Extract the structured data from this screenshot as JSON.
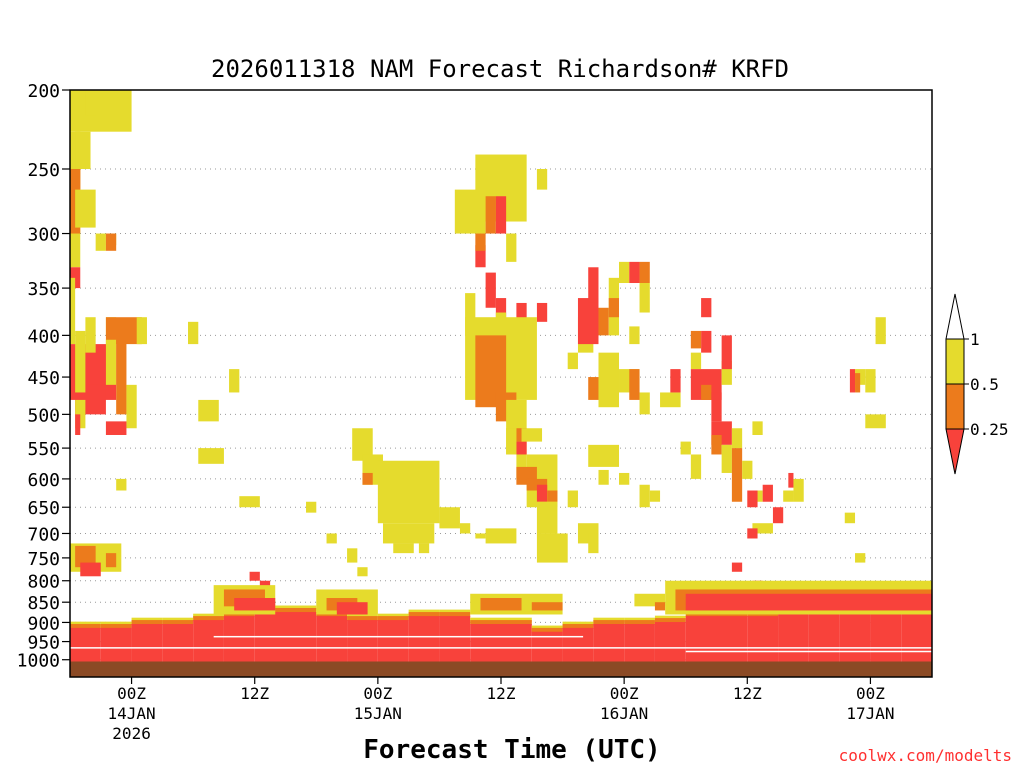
{
  "chart_data": {
    "type": "heatmap",
    "title": "2026011318 NAM Forecast Richardson# KRFD",
    "xlabel": "Forecast Time (UTC)",
    "source": "coolwx.com/modelts",
    "y_scale": "log",
    "y_reversed": true,
    "ylim": [
      200,
      1050
    ],
    "ylabel": "",
    "y_ticks": [
      200,
      250,
      300,
      350,
      400,
      450,
      500,
      550,
      600,
      650,
      700,
      750,
      800,
      850,
      900,
      950,
      1000
    ],
    "x_start": "2026-01-13 18Z",
    "x_step_hours": 1,
    "x_ticks": [
      {
        "hour": 6,
        "label": "00Z",
        "date": "14JAN",
        "year": "2026"
      },
      {
        "hour": 18,
        "label": "12Z",
        "date": "",
        "year": ""
      },
      {
        "hour": 30,
        "label": "00Z",
        "date": "15JAN",
        "year": ""
      },
      {
        "hour": 42,
        "label": "12Z",
        "date": "",
        "year": ""
      },
      {
        "hour": 54,
        "label": "00Z",
        "date": "16JAN",
        "year": ""
      },
      {
        "hour": 66,
        "label": "12Z",
        "date": "",
        "year": ""
      },
      {
        "hour": 78,
        "label": "00Z",
        "date": "17JAN",
        "year": ""
      }
    ],
    "xlim": [
      0,
      84
    ],
    "grid": "dotted at pressure ticks",
    "legend": {
      "position": "right",
      "levels": [
        "1",
        "0.5",
        "0.25"
      ],
      "categories": [
        {
          "code": "y",
          "range": "0.5 to 1",
          "color": "#e5db2d"
        },
        {
          "code": "o",
          "range": "0.25 to 0.5",
          "color": "#ec7b1c"
        },
        {
          "code": "r",
          "range": "< 0.25",
          "color": "#f8423b"
        }
      ]
    },
    "surface": {
      "pressure_top": 1005,
      "color": "#8b4a25"
    },
    "cells": [
      [
        "y",
        0,
        6,
        200,
        225
      ],
      [
        "y",
        1.5,
        2.5,
        200,
        215
      ],
      [
        "y",
        0,
        1,
        225,
        330
      ],
      [
        "o",
        0,
        1,
        250,
        300
      ],
      [
        "r",
        0,
        1,
        330,
        350
      ],
      [
        "y",
        0.5,
        2,
        225,
        250
      ],
      [
        "o",
        0.5,
        1,
        250,
        265
      ],
      [
        "y",
        0.5,
        2.5,
        265,
        295
      ],
      [
        "y",
        2.5,
        3.5,
        300,
        315
      ],
      [
        "y",
        3.5,
        4.5,
        300,
        310
      ],
      [
        "o",
        3.5,
        4.5,
        300,
        315
      ],
      [
        "y",
        0,
        0.5,
        340,
        410
      ],
      [
        "r",
        0,
        4.5,
        410,
        480
      ],
      [
        "r",
        0.5,
        3.5,
        460,
        500
      ],
      [
        "y",
        0.5,
        1.5,
        395,
        470
      ],
      [
        "y",
        1.5,
        2.5,
        380,
        420
      ],
      [
        "y",
        3.5,
        4.5,
        380,
        400
      ],
      [
        "o",
        3.5,
        7,
        380,
        410
      ],
      [
        "y",
        3.5,
        4.5,
        405,
        460
      ],
      [
        "o",
        4.5,
        5.5,
        405,
        500
      ],
      [
        "y",
        6.5,
        7.5,
        380,
        410
      ],
      [
        "y",
        5.5,
        6.5,
        460,
        520
      ],
      [
        "r",
        3.5,
        5.5,
        510,
        530
      ],
      [
        "y",
        0.5,
        1.5,
        480,
        520
      ],
      [
        "r",
        0.5,
        1,
        500,
        530
      ],
      [
        "y",
        11.5,
        12.5,
        385,
        410
      ],
      [
        "y",
        15.5,
        16.5,
        440,
        470
      ],
      [
        "y",
        12.5,
        14.5,
        480,
        510
      ],
      [
        "y",
        4.5,
        5.5,
        600,
        620
      ],
      [
        "y",
        0,
        5,
        720,
        780
      ],
      [
        "o",
        0.5,
        2.5,
        725,
        770
      ],
      [
        "r",
        1,
        3,
        760,
        790
      ],
      [
        "o",
        3.5,
        4.5,
        740,
        770
      ],
      [
        "y",
        37.5,
        40.5,
        265,
        300
      ],
      [
        "y",
        39.5,
        44.5,
        240,
        290
      ],
      [
        "o",
        40.5,
        41.5,
        270,
        300
      ],
      [
        "r",
        41.5,
        42.5,
        270,
        300
      ],
      [
        "y",
        45.5,
        46.5,
        250,
        265
      ],
      [
        "r",
        39.5,
        40.5,
        310,
        330
      ],
      [
        "o",
        39.5,
        40.5,
        300,
        315
      ],
      [
        "y",
        42.5,
        43.5,
        300,
        325
      ],
      [
        "r",
        40.5,
        41.5,
        335,
        370
      ],
      [
        "y",
        38.5,
        39.5,
        355,
        400
      ],
      [
        "r",
        41.5,
        42.5,
        360,
        385
      ],
      [
        "r",
        43.5,
        44.5,
        365,
        385
      ],
      [
        "r",
        45.5,
        46.5,
        365,
        385
      ],
      [
        "y",
        41.5,
        42.5,
        375,
        400
      ],
      [
        "o",
        43.5,
        44.5,
        390,
        410
      ],
      [
        "y",
        38.5,
        45.5,
        380,
        480
      ],
      [
        "o",
        39.5,
        42.5,
        400,
        490
      ],
      [
        "o",
        41.5,
        43.5,
        470,
        510
      ],
      [
        "y",
        42.5,
        44.5,
        480,
        560
      ],
      [
        "y",
        43.5,
        44.5,
        560,
        600
      ],
      [
        "o",
        43.5,
        44.5,
        520,
        540
      ],
      [
        "r",
        43.5,
        44.5,
        540,
        560
      ],
      [
        "y",
        42.5,
        43.5,
        520,
        560
      ],
      [
        "y",
        44.5,
        47.5,
        560,
        650
      ],
      [
        "o",
        43.5,
        45.5,
        580,
        610
      ],
      [
        "o",
        44.5,
        46.5,
        600,
        620
      ],
      [
        "r",
        45.5,
        46.5,
        610,
        640
      ],
      [
        "o",
        46.5,
        47.5,
        620,
        640
      ],
      [
        "y",
        45.5,
        47.5,
        640,
        700
      ],
      [
        "y",
        45.5,
        48.5,
        700,
        760
      ],
      [
        "y",
        40.5,
        43.5,
        690,
        720
      ],
      [
        "y",
        39.5,
        40.5,
        700,
        710
      ],
      [
        "y",
        49.5,
        51,
        380,
        420
      ],
      [
        "r",
        49.5,
        51.5,
        360,
        410
      ],
      [
        "r",
        50.5,
        51.5,
        330,
        365
      ],
      [
        "o",
        51.5,
        52.5,
        370,
        400
      ],
      [
        "y",
        52.5,
        53.5,
        340,
        400
      ],
      [
        "o",
        52.5,
        53.5,
        360,
        380
      ],
      [
        "y",
        53.5,
        54.5,
        325,
        345
      ],
      [
        "r",
        54.5,
        55.5,
        325,
        345
      ],
      [
        "o",
        55.5,
        56.5,
        325,
        345
      ],
      [
        "y",
        55.5,
        56.5,
        345,
        375
      ],
      [
        "y",
        54.5,
        55.5,
        390,
        410
      ],
      [
        "o",
        50.5,
        51.5,
        450,
        480
      ],
      [
        "y",
        51.5,
        53.5,
        420,
        490
      ],
      [
        "y",
        53.5,
        55.5,
        440,
        470
      ],
      [
        "o",
        54.5,
        55.5,
        440,
        480
      ],
      [
        "y",
        55.5,
        56.5,
        470,
        500
      ],
      [
        "y",
        48.5,
        49.5,
        420,
        440
      ],
      [
        "y",
        50.5,
        53.5,
        545,
        580
      ],
      [
        "y",
        51.5,
        52.5,
        585,
        610
      ],
      [
        "y",
        53.5,
        54.5,
        590,
        610
      ],
      [
        "y",
        55.5,
        56.5,
        610,
        650
      ],
      [
        "y",
        56.5,
        57.5,
        620,
        640
      ],
      [
        "y",
        48.5,
        49.5,
        620,
        650
      ],
      [
        "y",
        49.5,
        51.5,
        680,
        720
      ],
      [
        "y",
        50.5,
        51.5,
        700,
        740
      ],
      [
        "y",
        57.5,
        59.5,
        470,
        490
      ],
      [
        "r",
        58.5,
        59.5,
        440,
        470
      ],
      [
        "r",
        61.5,
        62.5,
        395,
        420
      ],
      [
        "o",
        60.5,
        61.5,
        395,
        415
      ],
      [
        "y",
        60.5,
        61.5,
        420,
        440
      ],
      [
        "r",
        60.5,
        63.5,
        440,
        480
      ],
      [
        "o",
        61.5,
        62.5,
        460,
        480
      ],
      [
        "r",
        62.5,
        63.5,
        470,
        510
      ],
      [
        "y",
        63.5,
        64.5,
        430,
        460
      ],
      [
        "r",
        63.5,
        64.5,
        400,
        440
      ],
      [
        "r",
        61.5,
        62.5,
        360,
        380
      ],
      [
        "y",
        59.5,
        60.5,
        540,
        560
      ],
      [
        "y",
        60.5,
        61.5,
        560,
        600
      ],
      [
        "r",
        62.5,
        64.5,
        510,
        545
      ],
      [
        "o",
        62.5,
        63.5,
        530,
        560
      ],
      [
        "y",
        63.5,
        64.5,
        545,
        590
      ],
      [
        "y",
        64.5,
        65.5,
        520,
        550
      ],
      [
        "o",
        64.5,
        65.5,
        550,
        640
      ],
      [
        "y",
        65.5,
        66.5,
        570,
        600
      ],
      [
        "y",
        66.5,
        67.5,
        510,
        530
      ],
      [
        "y",
        66.5,
        67.5,
        620,
        640
      ],
      [
        "r",
        67.5,
        68.5,
        610,
        640
      ],
      [
        "r",
        66,
        67,
        620,
        650
      ],
      [
        "r",
        70,
        70.5,
        590,
        615
      ],
      [
        "y",
        70.5,
        71.5,
        600,
        640
      ],
      [
        "y",
        69.5,
        70.5,
        620,
        640
      ],
      [
        "r",
        68.5,
        69.5,
        650,
        680
      ],
      [
        "y",
        66.5,
        68.5,
        680,
        700
      ],
      [
        "r",
        66,
        67,
        690,
        710
      ],
      [
        "r",
        66.5,
        67.5,
        800,
        820
      ],
      [
        "r",
        64.5,
        65.5,
        760,
        780
      ],
      [
        "y",
        78.5,
        79.5,
        380,
        410
      ],
      [
        "y",
        76.5,
        77.5,
        440,
        460
      ],
      [
        "r",
        76,
        76.5,
        440,
        470
      ],
      [
        "o",
        76.5,
        77,
        445,
        470
      ],
      [
        "y",
        77.5,
        78.5,
        440,
        470
      ],
      [
        "y",
        77.5,
        79.5,
        500,
        520
      ],
      [
        "y",
        75.5,
        76.5,
        660,
        680
      ],
      [
        "y",
        76.5,
        77.5,
        740,
        760
      ],
      [
        "y",
        12.5,
        15,
        550,
        575
      ],
      [
        "y",
        16.5,
        18.5,
        630,
        650
      ],
      [
        "y",
        23,
        24,
        640,
        660
      ],
      [
        "y",
        25,
        26,
        700,
        720
      ],
      [
        "y",
        27,
        28,
        730,
        760
      ],
      [
        "y",
        28,
        29,
        770,
        790
      ],
      [
        "r",
        17.5,
        18.5,
        780,
        800
      ],
      [
        "r",
        18.5,
        19.5,
        800,
        830
      ],
      [
        "y",
        27.5,
        29.5,
        520,
        570
      ],
      [
        "y",
        28.5,
        30.5,
        560,
        610
      ],
      [
        "o",
        28.5,
        29.5,
        590,
        610
      ],
      [
        "y",
        30,
        36,
        570,
        680
      ],
      [
        "y",
        30.5,
        35.5,
        680,
        720
      ],
      [
        "y",
        31.5,
        33.5,
        720,
        740
      ],
      [
        "y",
        34,
        35,
        720,
        740
      ],
      [
        "y",
        36,
        38,
        650,
        690
      ],
      [
        "y",
        38,
        39,
        680,
        700
      ],
      [
        "y",
        44,
        46,
        520,
        540
      ]
    ],
    "bands": [
      [
        0,
        0,
        920,
        1005
      ],
      [
        3,
        0,
        910,
        1005
      ],
      [
        6,
        0,
        920,
        1005
      ],
      [
        9,
        0,
        900,
        1005
      ],
      [
        12,
        0,
        900,
        1005
      ],
      [
        15,
        0,
        890,
        1005
      ],
      [
        18,
        0,
        880,
        1005
      ],
      [
        21,
        0,
        870,
        1005
      ],
      [
        24,
        0,
        880,
        1005
      ],
      [
        27,
        0,
        890,
        1005
      ],
      [
        30,
        0,
        895,
        1005
      ],
      [
        33,
        0,
        890,
        1005
      ],
      [
        36,
        0,
        880,
        1005
      ],
      [
        39,
        0,
        900,
        1005
      ],
      [
        42,
        0,
        900,
        1005
      ],
      [
        45,
        0,
        920,
        1005
      ],
      [
        48,
        0,
        920,
        1005
      ],
      [
        51,
        0,
        910,
        1005
      ],
      [
        54,
        0,
        900,
        1005
      ],
      [
        57,
        0,
        900,
        1005
      ],
      [
        60,
        0,
        895,
        1005
      ],
      [
        63,
        0,
        880,
        1005
      ],
      [
        66,
        0,
        880,
        1005
      ],
      [
        69,
        0,
        880,
        1005
      ],
      [
        72,
        0,
        870,
        1005
      ],
      [
        75,
        0,
        860,
        1005
      ],
      [
        78,
        0,
        860,
        1005
      ],
      [
        81,
        0,
        870,
        1005
      ],
      [
        84,
        0,
        880,
        1005
      ]
    ],
    "upper_band": [
      [
        "y",
        14,
        20,
        810,
        880
      ],
      [
        "o",
        15,
        19,
        820,
        860
      ],
      [
        "r",
        16,
        20,
        840,
        870
      ],
      [
        "y",
        24,
        30,
        820,
        880
      ],
      [
        "o",
        25,
        28,
        840,
        870
      ],
      [
        "r",
        26,
        29,
        850,
        880
      ],
      [
        "y",
        39,
        48,
        830,
        880
      ],
      [
        "o",
        40,
        44,
        840,
        870
      ],
      [
        "o",
        45,
        48,
        850,
        870
      ],
      [
        "y",
        55,
        58,
        830,
        860
      ],
      [
        "o",
        57,
        58,
        850,
        870
      ],
      [
        "y",
        58,
        84,
        800,
        880
      ],
      [
        "o",
        59,
        84,
        820,
        870
      ],
      [
        "r",
        60,
        84,
        830,
        870
      ]
    ]
  }
}
